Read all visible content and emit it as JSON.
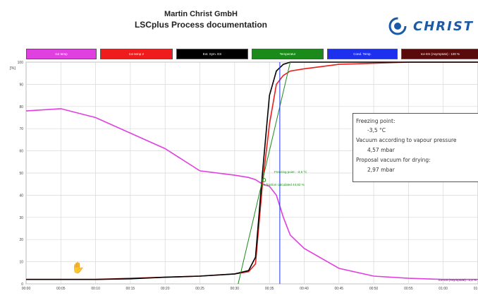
{
  "header": {
    "company": "Martin Christ GmbH",
    "title": "LSCplus Process documentation",
    "logo_text": "CHRIST",
    "logo_color": "#1a5aa7"
  },
  "legend": [
    {
      "label": "Ice temp",
      "color": "#e040e0"
    },
    {
      "label": "Ice temp 2",
      "color": "#ee1c1c"
    },
    {
      "label": "Ext. Sym. ES",
      "color": "#000000"
    },
    {
      "label": "Temperatur",
      "color": "#1a8a1a"
    },
    {
      "label": "Cond. Temp.",
      "color": "#1c30ee"
    },
    {
      "label": "Ice ES (Asymptote) : 100 %",
      "color": "#5a0a0a"
    }
  ],
  "info_box": {
    "line1": "Freezing point:",
    "line2": "-3,5 °C",
    "line3": "Vacuum according to vapour pressure",
    "line4": "4,57 mbar",
    "line5": "Proposal vacuum for drying:",
    "line6": "2,97 mbar"
  },
  "annotations": {
    "freezing_point": "Freezing point : -3,5 °C",
    "ice_fraction": "Ice fraction calculated 44,82 %",
    "bottom_right": "Ice ES (Asymptote) : 2,2 %"
  },
  "icons": {
    "hand": "hand-cursor-icon"
  },
  "chart_data": {
    "type": "line",
    "ylabel": "[%]",
    "ylim": [
      0,
      100
    ],
    "y_ticks": [
      "100",
      "90",
      "80",
      "70",
      "60",
      "50",
      "40",
      "30",
      "20",
      "10",
      "0"
    ],
    "x_ticks": [
      "00:00",
      "00:05",
      "00:10",
      "00:15",
      "00:20",
      "00:25",
      "00:30",
      "00:35",
      "00:40",
      "00:45",
      "00:50",
      "00:55",
      "01:00",
      "01:05"
    ],
    "x": [
      0,
      5,
      10,
      15,
      20,
      25,
      30,
      32,
      33,
      34,
      35,
      36,
      37,
      38,
      40,
      45,
      50,
      55,
      60,
      65
    ],
    "series": [
      {
        "color": "#e040e0",
        "values": [
          78,
          79,
          75,
          68,
          61,
          51,
          49,
          48,
          47,
          45,
          44,
          40,
          30,
          22,
          16,
          7,
          3.5,
          2.5,
          2,
          2
        ]
      },
      {
        "color": "#ee1c1c",
        "values": [
          2,
          2,
          2,
          2.5,
          3,
          3.5,
          4.5,
          5.5,
          9,
          45,
          72,
          90,
          94,
          96,
          97,
          99,
          99.5,
          100,
          100,
          100
        ]
      },
      {
        "color": "#000000",
        "values": [
          2,
          2,
          2,
          2.3,
          3,
          3.5,
          4.5,
          6,
          12,
          50,
          85,
          96,
          99,
          100,
          100,
          100,
          100,
          100,
          100,
          100
        ]
      },
      {
        "color": "#1a8a1a",
        "x": [
          30.5,
          38
        ],
        "values": [
          0,
          100
        ]
      },
      {
        "color": "#1c30ee",
        "x": [
          36.5,
          36.5
        ],
        "values": [
          0,
          100
        ]
      }
    ]
  }
}
